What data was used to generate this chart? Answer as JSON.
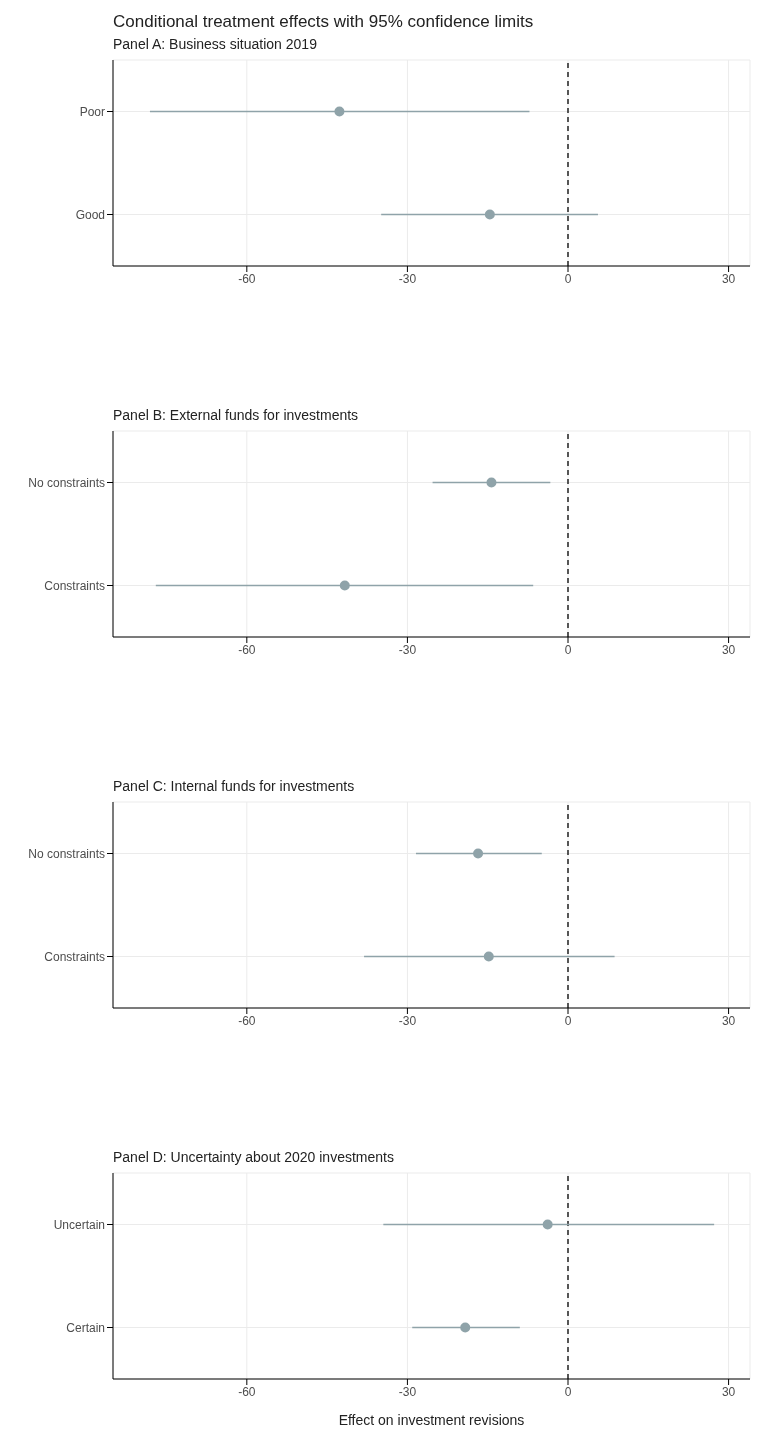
{
  "chart_data": [
    {
      "type": "scatter",
      "title": "Conditional treatment effects with 95% confidence limits",
      "subtitle": "Panel A: Business situation 2019",
      "orientation": "horizontal",
      "categories": [
        "Poor",
        "Good"
      ],
      "values": [
        -42.7,
        -14.6
      ],
      "errors": [
        [
          -78.1,
          -7.2
        ],
        [
          -34.9,
          5.6
        ]
      ],
      "color": "#8fa3a9",
      "marker": "circle",
      "xlim": [
        -85,
        34
      ],
      "xticks": [
        -60,
        -30,
        0,
        30
      ],
      "grid": true,
      "ref_lines": [
        {
          "axis": "x",
          "value": 0,
          "color": "#000000",
          "line_style": "dashed"
        }
      ]
    },
    {
      "type": "scatter",
      "subtitle": "Panel B: External funds for investments",
      "orientation": "horizontal",
      "categories": [
        "No constraints",
        "Constraints"
      ],
      "values": [
        -14.3,
        -41.7
      ],
      "errors": [
        [
          -25.3,
          -3.3
        ],
        [
          -77,
          -6.5
        ]
      ],
      "color": "#8fa3a9",
      "marker": "circle",
      "xlim": [
        -85,
        34
      ],
      "xticks": [
        -60,
        -30,
        0,
        30
      ],
      "grid": true,
      "ref_lines": [
        {
          "axis": "x",
          "value": 0,
          "color": "#000000",
          "line_style": "dashed"
        }
      ]
    },
    {
      "type": "scatter",
      "subtitle": "Panel C: Internal funds for investments",
      "orientation": "horizontal",
      "categories": [
        "No constraints",
        "Constraints"
      ],
      "values": [
        -16.8,
        -14.8
      ],
      "errors": [
        [
          -28.4,
          -4.9
        ],
        [
          -38.1,
          8.7
        ]
      ],
      "color": "#8fa3a9",
      "marker": "circle",
      "xlim": [
        -85,
        34
      ],
      "xticks": [
        -60,
        -30,
        0,
        30
      ],
      "grid": true,
      "ref_lines": [
        {
          "axis": "x",
          "value": 0,
          "color": "#000000",
          "line_style": "dashed"
        }
      ]
    },
    {
      "type": "scatter",
      "subtitle": "Panel D: Uncertainty about 2020 investments",
      "xlabel": "Effect on investment revisions",
      "orientation": "horizontal",
      "categories": [
        "Uncertain",
        "Certain"
      ],
      "values": [
        -3.8,
        -19.2
      ],
      "errors": [
        [
          -34.5,
          27.3
        ],
        [
          -29.1,
          -9
        ]
      ],
      "color": "#8fa3a9",
      "marker": "circle",
      "xlim": [
        -85,
        34
      ],
      "xticks": [
        -60,
        -30,
        0,
        30
      ],
      "grid": true,
      "ref_lines": [
        {
          "axis": "x",
          "value": 0,
          "color": "#000000",
          "line_style": "dashed"
        }
      ]
    }
  ]
}
